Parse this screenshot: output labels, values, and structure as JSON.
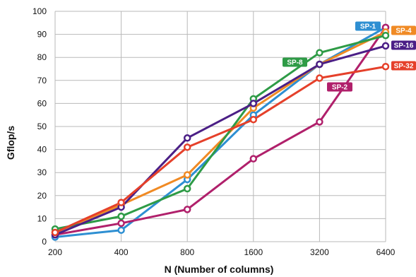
{
  "chart_data": {
    "type": "line",
    "title": "",
    "xlabel": "N (Number of columns)",
    "ylabel": "Gflop/s",
    "categories": [
      "200",
      "400",
      "800",
      "1600",
      "3200",
      "6400"
    ],
    "x_scale": "log2",
    "ylim": [
      0,
      100
    ],
    "yticks": [
      "0",
      "10",
      "20",
      "30",
      "40",
      "50",
      "60",
      "70",
      "80",
      "90",
      "100"
    ],
    "grid": true,
    "legend": "inline labels near line ends",
    "series": [
      {
        "name": "SP-1",
        "color": "#2e8fd2",
        "values": [
          2,
          5,
          27,
          55,
          77,
          93
        ]
      },
      {
        "name": "SP-2",
        "color": "#b0206b",
        "values": [
          3,
          8,
          14,
          36,
          52,
          93
        ]
      },
      {
        "name": "SP-4",
        "color": "#f08a24",
        "values": [
          4,
          16,
          29,
          58,
          77,
          91
        ]
      },
      {
        "name": "SP-8",
        "color": "#2e9b46",
        "values": [
          5.5,
          11,
          23,
          62,
          82,
          89.5
        ]
      },
      {
        "name": "SP-16",
        "color": "#4b1f86",
        "values": [
          3,
          15,
          45,
          60,
          77,
          85
        ]
      },
      {
        "name": "SP-32",
        "color": "#e5402a",
        "values": [
          4,
          17,
          41,
          53,
          71,
          76
        ]
      }
    ]
  }
}
